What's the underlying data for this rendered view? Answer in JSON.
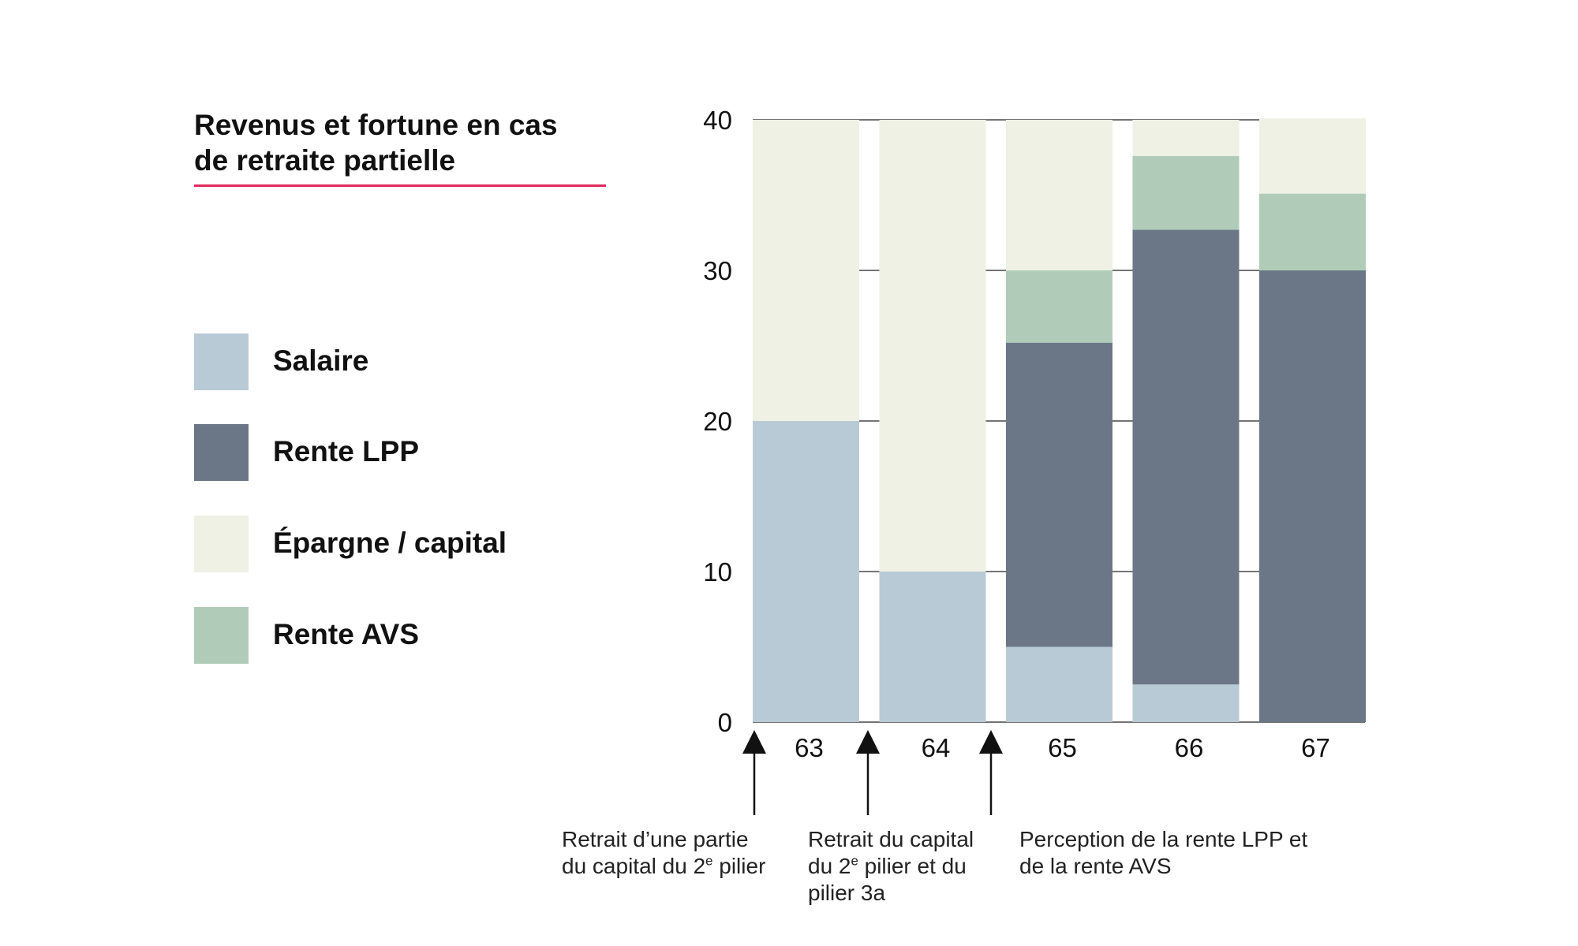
{
  "title_lines": [
    "Revenus et fortune en cas",
    "de retraite partielle"
  ],
  "accent_color": "#e0285a",
  "legend": [
    {
      "label": "Salaire",
      "color": "#b8cad5"
    },
    {
      "label": "Rente LPP",
      "color": "#6b7787"
    },
    {
      "label": "Épargne / capital",
      "color": "#eef1e4"
    },
    {
      "label": "Rente AVS",
      "color": "#b0ccb9"
    }
  ],
  "chart_data": {
    "type": "bar",
    "stacked": true,
    "categories": [
      "63",
      "64",
      "65",
      "66",
      "67"
    ],
    "series": [
      {
        "name": "Salaire",
        "color": "#b8cad5",
        "values": [
          20,
          10,
          5,
          2.5,
          0
        ]
      },
      {
        "name": "Rente LPP",
        "color": "#6b7787",
        "values": [
          0,
          0,
          20.2,
          30.2,
          30
        ]
      },
      {
        "name": "Rente AVS",
        "color": "#b0ccb9",
        "values": [
          0,
          0,
          4.8,
          4.9,
          5.1
        ]
      },
      {
        "name": "Épargne / capital",
        "color": "#eef1e4",
        "values": [
          20,
          30,
          10,
          2.4,
          5
        ]
      }
    ],
    "yticks": [
      "0",
      "10",
      "20",
      "30",
      "40"
    ],
    "ylim": [
      0,
      40
    ],
    "grid": true,
    "legend_position": "left"
  },
  "annotations": [
    {
      "lines": [
        "Retrait d’une partie",
        "du capital du 2e pilier"
      ]
    },
    {
      "lines": [
        "Retrait du capital",
        "du 2e pilier et du",
        "pilier 3a"
      ]
    },
    {
      "lines": [
        "Perception de la rente LPP et",
        "de la rente AVS"
      ]
    }
  ]
}
